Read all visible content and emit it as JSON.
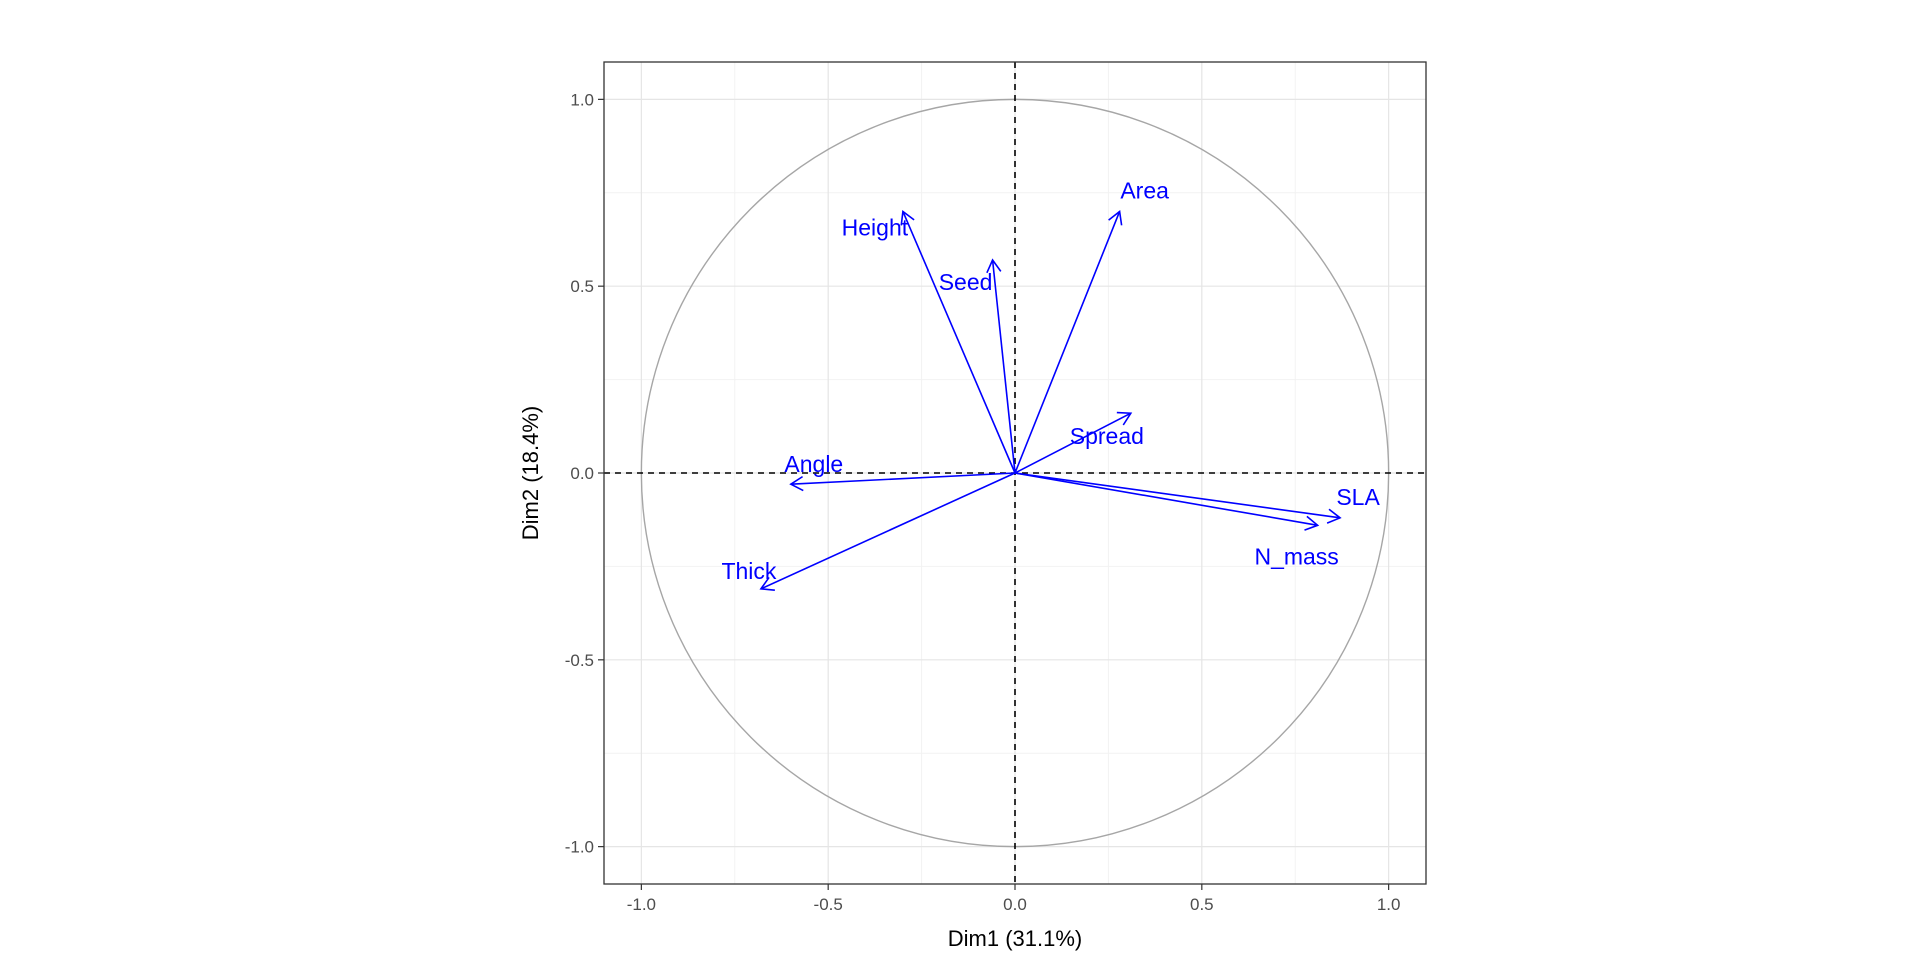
{
  "chart_data": {
    "type": "scatter",
    "subtype": "pca-correlation-circle",
    "xlabel": "Dim1 (31.1%)",
    "ylabel": "Dim2 (18.4%)",
    "xlim": [
      -1.1,
      1.1
    ],
    "ylim": [
      -1.1,
      1.1
    ],
    "xticks": [
      -1.0,
      -0.5,
      0.0,
      0.5,
      1.0
    ],
    "yticks": [
      -1.0,
      -0.5,
      0.0,
      0.5,
      1.0
    ],
    "xtick_labels": [
      "-1.0",
      "-0.5",
      "0.0",
      "0.5",
      "1.0"
    ],
    "ytick_labels": [
      "-1.0",
      "-0.5",
      "0.0",
      "0.5",
      "1.0"
    ],
    "grid": true,
    "unit_circle": true,
    "reference_lines": "dashed at x=0 and y=0",
    "arrow_color": "#0000ff",
    "circle_color": "#a6a6a6",
    "variables": [
      {
        "name": "Height",
        "x": -0.3,
        "y": 0.7
      },
      {
        "name": "Seed",
        "x": -0.06,
        "y": 0.57
      },
      {
        "name": "Area",
        "x": 0.28,
        "y": 0.7
      },
      {
        "name": "Spread",
        "x": 0.31,
        "y": 0.16
      },
      {
        "name": "Angle",
        "x": -0.6,
        "y": -0.03
      },
      {
        "name": "Thick",
        "x": -0.68,
        "y": -0.31
      },
      {
        "name": "SLA",
        "x": 0.87,
        "y": -0.12
      },
      {
        "name": "N_mass",
        "x": 0.81,
        "y": -0.14
      }
    ]
  }
}
